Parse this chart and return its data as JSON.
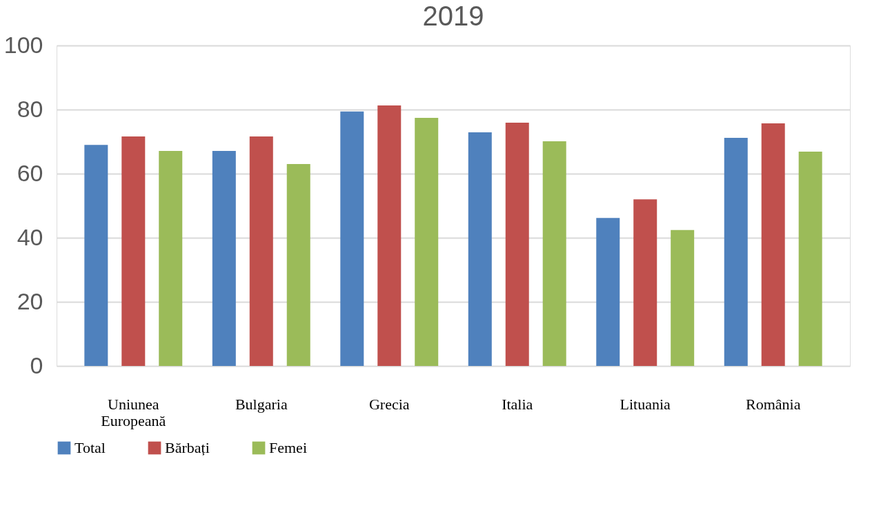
{
  "chart_data": {
    "type": "bar",
    "title": "2019",
    "categories": [
      "Uniunea Europeană",
      "Bulgaria",
      "Grecia",
      "Italia",
      "Lituania",
      "România"
    ],
    "series": [
      {
        "name": "Total",
        "color": "#4f81bd",
        "values": [
          69.0,
          67.1,
          79.4,
          72.9,
          46.2,
          71.2
        ]
      },
      {
        "name": "Bărbați",
        "color": "#c0504d",
        "values": [
          71.6,
          71.6,
          81.3,
          75.9,
          52.0,
          75.7
        ]
      },
      {
        "name": "Femei",
        "color": "#9bbb59",
        "values": [
          67.1,
          63.0,
          77.4,
          70.1,
          42.4,
          66.9
        ]
      }
    ],
    "ylim": [
      0,
      100
    ],
    "yticks": [
      0,
      20,
      40,
      60,
      80,
      100
    ],
    "grid": "y",
    "legend": "bottom"
  }
}
